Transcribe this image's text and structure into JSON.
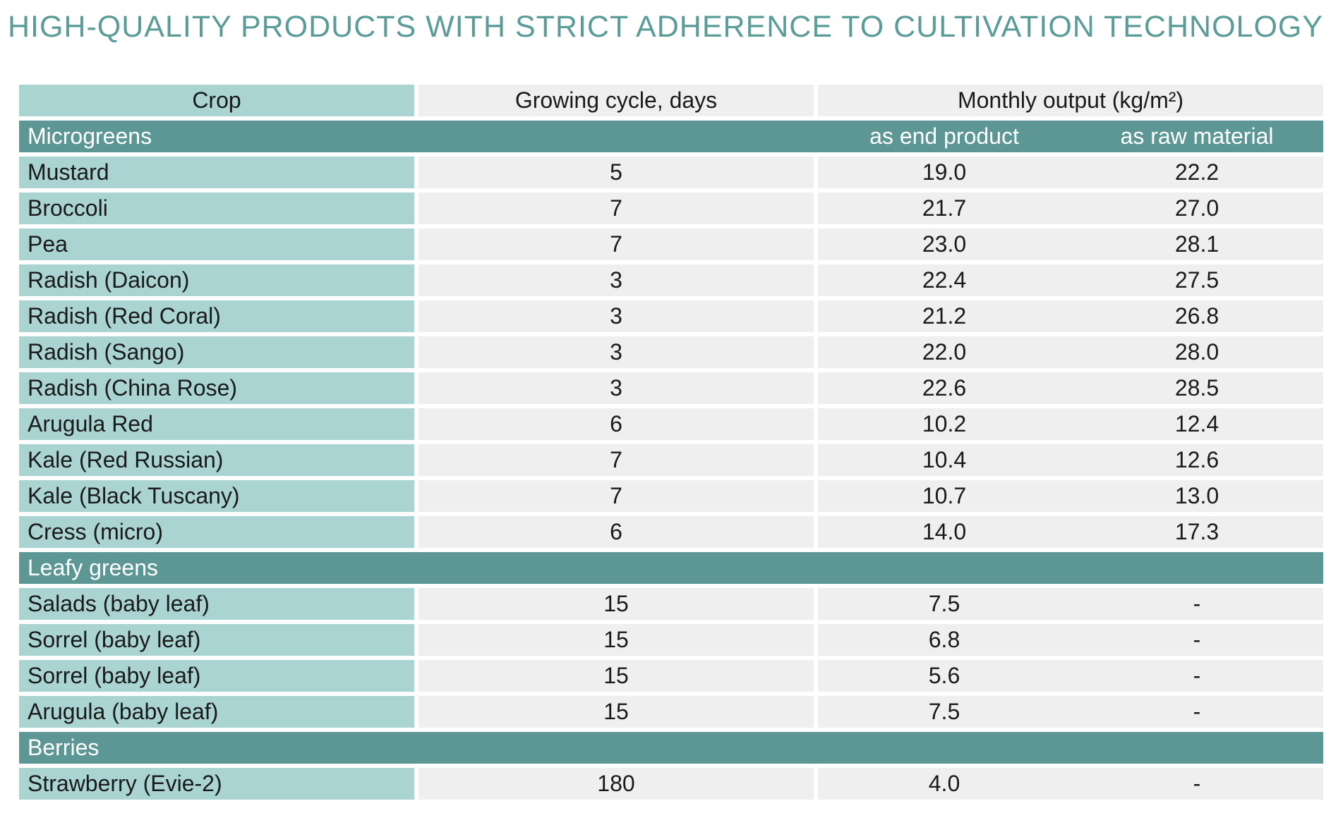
{
  "title": "HIGH-QUALITY PRODUCTS WITH STRICT ADHERENCE TO CULTIVATION TECHNOLOGY",
  "header": {
    "crop": "Crop",
    "cycle": "Growing cycle, days",
    "output": "Monthly output (kg/m²)"
  },
  "sections": [
    {
      "name": "Microgreens",
      "sub_end": "as end product",
      "sub_raw": "as raw material",
      "rows": [
        {
          "crop": "Mustard",
          "cycle": "5",
          "end": "19.0",
          "raw": "22.2"
        },
        {
          "crop": "Broccoli",
          "cycle": "7",
          "end": "21.7",
          "raw": "27.0"
        },
        {
          "crop": "Pea",
          "cycle": "7",
          "end": "23.0",
          "raw": "28.1"
        },
        {
          "crop": "Radish (Daicon)",
          "cycle": "3",
          "end": "22.4",
          "raw": "27.5"
        },
        {
          "crop": "Radish (Red Coral)",
          "cycle": "3",
          "end": "21.2",
          "raw": "26.8"
        },
        {
          "crop": "Radish (Sango)",
          "cycle": "3",
          "end": "22.0",
          "raw": "28.0"
        },
        {
          "crop": "Radish (China Rose)",
          "cycle": "3",
          "end": "22.6",
          "raw": "28.5"
        },
        {
          "crop": "Arugula Red",
          "cycle": "6",
          "end": "10.2",
          "raw": "12.4"
        },
        {
          "crop": "Kale (Red Russian)",
          "cycle": "7",
          "end": "10.4",
          "raw": "12.6"
        },
        {
          "crop": "Kale (Black Tuscany)",
          "cycle": "7",
          "end": "10.7",
          "raw": "13.0"
        },
        {
          "crop": "Cress (micro)",
          "cycle": "6",
          "end": "14.0",
          "raw": "17.3"
        }
      ]
    },
    {
      "name": "Leafy greens",
      "sub_end": "",
      "sub_raw": "",
      "rows": [
        {
          "crop": "Salads (baby leaf)",
          "cycle": "15",
          "end": "7.5",
          "raw": "-"
        },
        {
          "crop": "Sorrel (baby leaf)",
          "cycle": "15",
          "end": "6.8",
          "raw": "-"
        },
        {
          "crop": "Sorrel (baby leaf)",
          "cycle": "15",
          "end": "5.6",
          "raw": "-"
        },
        {
          "crop": "Arugula (baby leaf)",
          "cycle": "15",
          "end": "7.5",
          "raw": "-"
        }
      ]
    },
    {
      "name": "Berries",
      "sub_end": "",
      "sub_raw": "",
      "rows": [
        {
          "crop": "Strawberry (Evie-2)",
          "cycle": "180",
          "end": "4.0",
          "raw": "-"
        }
      ]
    }
  ]
}
